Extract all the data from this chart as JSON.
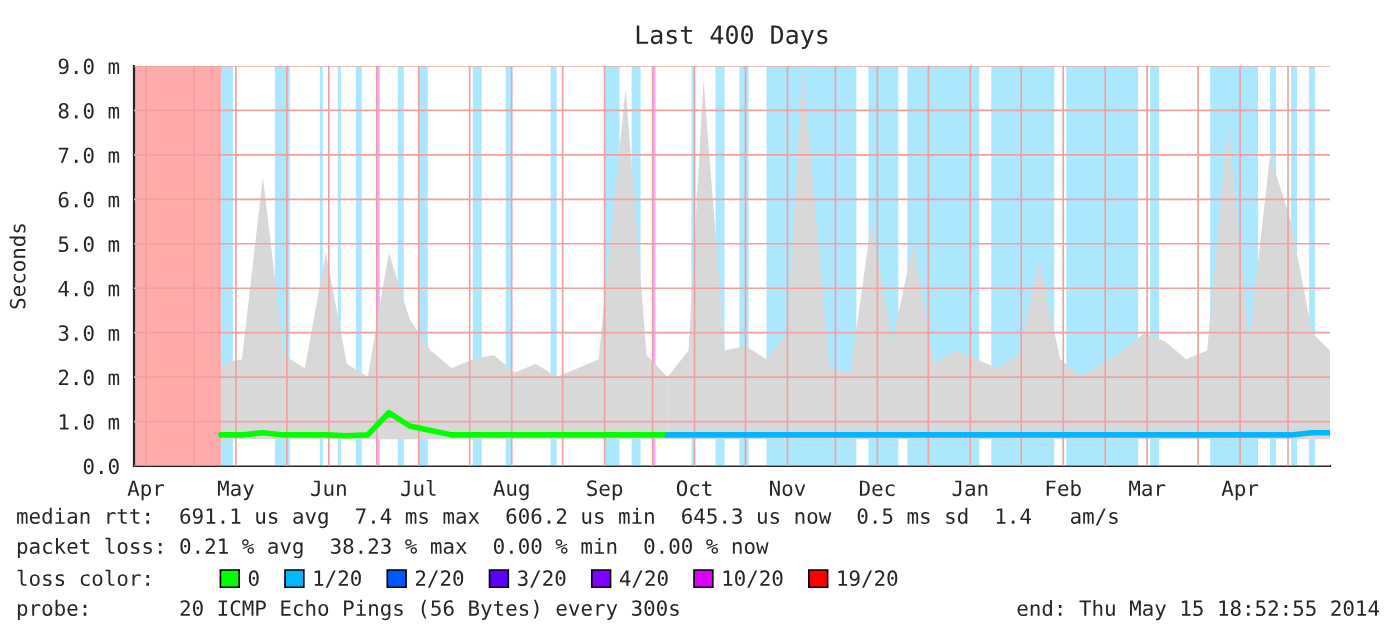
{
  "chart_data": {
    "type": "line",
    "title": "Last 400 Days",
    "ylabel": "Seconds",
    "xlim": [
      "2013-04-11",
      "2014-05-15"
    ],
    "ylim": [
      0,
      9
    ],
    "yticks": [
      {
        "value": 0,
        "label": "0.0"
      },
      {
        "value": 1,
        "label": "1.0 m"
      },
      {
        "value": 2,
        "label": "2.0 m"
      },
      {
        "value": 3,
        "label": "3.0 m"
      },
      {
        "value": 4,
        "label": "4.0 m"
      },
      {
        "value": 5,
        "label": "5.0 m"
      },
      {
        "value": 6,
        "label": "6.0 m"
      },
      {
        "value": 7,
        "label": "7.0 m"
      },
      {
        "value": 8,
        "label": "8.0 m"
      },
      {
        "value": 9,
        "label": "9.0 m"
      }
    ],
    "xticks": [
      {
        "value": "2013-04-15",
        "label": "Apr"
      },
      {
        "value": "2013-05-01",
        "label": null
      },
      {
        "value": "2013-05-15",
        "label": "May"
      },
      {
        "value": "2013-06-01",
        "label": null
      },
      {
        "value": "2013-06-15",
        "label": "Jun"
      },
      {
        "value": "2013-07-01",
        "label": null
      },
      {
        "value": "2013-07-15",
        "label": "Jul"
      },
      {
        "value": "2013-08-01",
        "label": null
      },
      {
        "value": "2013-08-15",
        "label": "Aug"
      },
      {
        "value": "2013-09-01",
        "label": null
      },
      {
        "value": "2013-09-15",
        "label": "Sep"
      },
      {
        "value": "2013-10-01",
        "label": null
      },
      {
        "value": "2013-10-15",
        "label": "Oct"
      },
      {
        "value": "2013-11-01",
        "label": null
      },
      {
        "value": "2013-11-15",
        "label": "Nov"
      },
      {
        "value": "2013-12-01",
        "label": null
      },
      {
        "value": "2013-12-15",
        "label": "Dec"
      },
      {
        "value": "2014-01-01",
        "label": null
      },
      {
        "value": "2014-01-15",
        "label": "Jan"
      },
      {
        "value": "2014-02-01",
        "label": null
      },
      {
        "value": "2014-02-15",
        "label": "Feb"
      },
      {
        "value": "2014-03-01",
        "label": null
      },
      {
        "value": "2014-03-15",
        "label": "Mar"
      },
      {
        "value": "2014-04-01",
        "label": null
      },
      {
        "value": "2014-04-15",
        "label": "Apr"
      },
      {
        "value": "2014-05-01",
        "label": null
      }
    ],
    "grid": true,
    "legend": "bottom",
    "legend_title": "loss color:",
    "series": [
      {
        "name": "0",
        "color": "#00ff00",
        "x": [
          "2013-05-10",
          "2013-05-17",
          "2013-05-24",
          "2013-05-31",
          "2013-06-07",
          "2013-06-14",
          "2013-06-21",
          "2013-06-28",
          "2013-07-05",
          "2013-07-12",
          "2013-07-19",
          "2013-07-26",
          "2013-08-02",
          "2013-08-09",
          "2013-08-16",
          "2013-08-23",
          "2013-08-30",
          "2013-09-06",
          "2013-09-13",
          "2013-09-22",
          "2013-09-29",
          "2013-10-06"
        ],
        "values": [
          0.7,
          0.7,
          0.75,
          0.7,
          0.7,
          0.7,
          0.68,
          0.7,
          1.2,
          0.9,
          0.8,
          0.7,
          0.7,
          0.7,
          0.7,
          0.7,
          0.7,
          0.7,
          0.7,
          0.7,
          0.7,
          0.7
        ],
        "lower": [
          0.6,
          0.6,
          0.6,
          0.6,
          0.6,
          0.6,
          0.6,
          0.6,
          0.6,
          0.6,
          0.6,
          0.6,
          0.6,
          0.6,
          0.6,
          0.6,
          0.6,
          0.6,
          0.6,
          0.6,
          0.6,
          0.6
        ],
        "upper": [
          2.3,
          2.4,
          6.5,
          2.5,
          2.2,
          4.8,
          2.3,
          2.0,
          4.8,
          3.3,
          2.6,
          2.2,
          2.4,
          2.5,
          2.1,
          2.3,
          2.0,
          2.2,
          2.4,
          8.5,
          2.5,
          2.0
        ]
      },
      {
        "name": "1/20",
        "color": "#00b8ff",
        "x": [
          "2013-10-06",
          "2013-10-13",
          "2013-10-18",
          "2013-10-25",
          "2013-11-01",
          "2013-11-08",
          "2013-11-15",
          "2013-11-20",
          "2013-11-29",
          "2013-12-06",
          "2013-12-13",
          "2013-12-20",
          "2013-12-27",
          "2014-01-03",
          "2014-01-10",
          "2014-01-17",
          "2014-01-24",
          "2014-01-31",
          "2014-02-07",
          "2014-02-14",
          "2014-02-21",
          "2014-02-28",
          "2014-03-07",
          "2014-03-14",
          "2014-03-21",
          "2014-03-28",
          "2014-04-04",
          "2014-04-11",
          "2014-04-18",
          "2014-04-25",
          "2014-05-02",
          "2014-05-09",
          "2014-05-15"
        ],
        "values": [
          0.7,
          0.7,
          0.7,
          0.7,
          0.7,
          0.7,
          0.7,
          0.7,
          0.7,
          0.7,
          0.7,
          0.7,
          0.7,
          0.7,
          0.7,
          0.7,
          0.7,
          0.7,
          0.7,
          0.7,
          0.7,
          0.7,
          0.7,
          0.7,
          0.7,
          0.7,
          0.7,
          0.7,
          0.7,
          0.7,
          0.7,
          0.75,
          0.75
        ],
        "lower": [
          0.6,
          0.6,
          0.6,
          0.6,
          0.6,
          0.6,
          0.6,
          0.6,
          0.6,
          0.6,
          0.6,
          0.6,
          0.6,
          0.6,
          0.6,
          0.6,
          0.6,
          0.6,
          0.6,
          0.6,
          0.6,
          0.6,
          0.6,
          0.6,
          0.6,
          0.6,
          0.6,
          0.6,
          0.6,
          0.6,
          0.6,
          0.6,
          0.6
        ],
        "upper": [
          2.0,
          2.6,
          8.7,
          2.6,
          2.7,
          2.4,
          3.0,
          9.0,
          2.2,
          2.1,
          5.5,
          2.8,
          5.0,
          2.3,
          2.6,
          2.4,
          2.2,
          2.5,
          4.6,
          2.4,
          2.0,
          2.3,
          2.6,
          3.0,
          2.8,
          2.4,
          2.6,
          7.7,
          2.8,
          7.0,
          5.5,
          3.0,
          2.6
        ]
      },
      {
        "name": "2/20",
        "color": "#0059ff"
      },
      {
        "name": "3/20",
        "color": "#5e00ff"
      },
      {
        "name": "4/20",
        "color": "#7e00ff"
      }
    ],
    "bands": [
      {
        "axis": "x",
        "from": "2013-07-01",
        "to": "2013-07-02",
        "color": "#dd00ff",
        "label": "10/20"
      },
      {
        "axis": "x",
        "from": "2013-04-11",
        "to": "2013-05-10",
        "color": "#ff0000",
        "label": "19/20"
      },
      {
        "axis": "x",
        "from": "2013-10-01",
        "to": "2013-10-02",
        "color": "#dd00ff"
      },
      {
        "axis": "x",
        "from": "2013-05-10",
        "to": "2013-05-14",
        "color": "#00b8ff"
      },
      {
        "axis": "x",
        "from": "2013-05-28",
        "to": "2013-06-02",
        "color": "#00b8ff"
      },
      {
        "axis": "x",
        "from": "2013-06-12",
        "to": "2013-06-13",
        "color": "#00b8ff"
      },
      {
        "axis": "x",
        "from": "2013-06-18",
        "to": "2013-06-19",
        "color": "#00b8ff"
      },
      {
        "axis": "x",
        "from": "2013-06-24",
        "to": "2013-06-26",
        "color": "#00b8ff"
      },
      {
        "axis": "x",
        "from": "2013-07-08",
        "to": "2013-07-10",
        "color": "#00b8ff"
      },
      {
        "axis": "x",
        "from": "2013-07-15",
        "to": "2013-07-18",
        "color": "#00b8ff"
      },
      {
        "axis": "x",
        "from": "2013-08-02",
        "to": "2013-08-05",
        "color": "#00b8ff"
      },
      {
        "axis": "x",
        "from": "2013-08-13",
        "to": "2013-08-15",
        "color": "#00b8ff"
      },
      {
        "axis": "x",
        "from": "2013-08-28",
        "to": "2013-08-30",
        "color": "#00b8ff"
      },
      {
        "axis": "x",
        "from": "2013-09-15",
        "to": "2013-09-20",
        "color": "#00b8ff"
      },
      {
        "axis": "x",
        "from": "2013-09-24",
        "to": "2013-09-27",
        "color": "#00b8ff"
      },
      {
        "axis": "x",
        "from": "2013-10-14",
        "to": "2013-10-15",
        "color": "#00b8ff"
      },
      {
        "axis": "x",
        "from": "2013-10-22",
        "to": "2013-10-25",
        "color": "#00b8ff"
      },
      {
        "axis": "x",
        "from": "2013-10-30",
        "to": "2013-11-02",
        "color": "#00b8ff"
      },
      {
        "axis": "x",
        "from": "2013-11-08",
        "to": "2013-12-08",
        "color": "#00b8ff"
      },
      {
        "axis": "x",
        "from": "2013-12-12",
        "to": "2013-12-22",
        "color": "#00b8ff"
      },
      {
        "axis": "x",
        "from": "2013-12-25",
        "to": "2014-01-18",
        "color": "#00b8ff"
      },
      {
        "axis": "x",
        "from": "2014-01-22",
        "to": "2014-02-12",
        "color": "#00b8ff"
      },
      {
        "axis": "x",
        "from": "2014-02-16",
        "to": "2014-03-12",
        "color": "#00b8ff"
      },
      {
        "axis": "x",
        "from": "2014-03-16",
        "to": "2014-03-19",
        "color": "#00b8ff"
      },
      {
        "axis": "x",
        "from": "2014-04-05",
        "to": "2014-04-21",
        "color": "#00b8ff"
      },
      {
        "axis": "x",
        "from": "2014-04-25",
        "to": "2014-04-27",
        "color": "#00b8ff"
      },
      {
        "axis": "x",
        "from": "2014-05-02",
        "to": "2014-05-04",
        "color": "#00b8ff"
      },
      {
        "axis": "x",
        "from": "2014-05-08",
        "to": "2014-05-10",
        "color": "#00b8ff"
      }
    ],
    "annotations": [
      "median rtt:  691.1 us avg  7.4 ms max  606.2 us min  645.3 us now  0.5 ms sd  1.4   am/s",
      "packet loss: 0.21 % avg  38.23 % max  0.00 % min  0.00 % now",
      "probe:       20 ICMP Echo Pings (56 Bytes) every 300s",
      "end: Thu May 15 18:52:55 2014"
    ]
  }
}
